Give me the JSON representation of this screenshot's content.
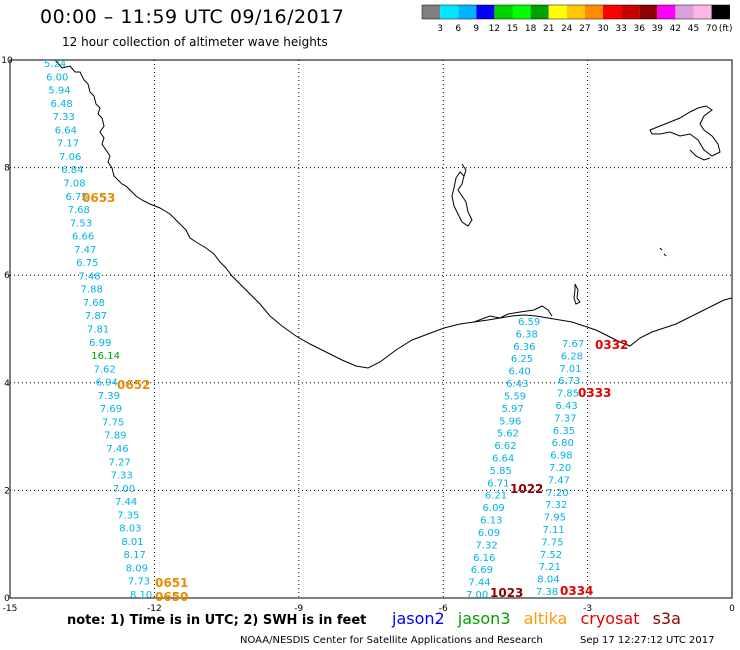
{
  "header": {
    "title": "00:00 – 11:59 UTC 09/16/2017",
    "subtitle": "12 hour collection of altimeter wave heights"
  },
  "colorbar": {
    "unit": "(ft)",
    "ticks": [
      "3",
      "6",
      "9",
      "12",
      "15",
      "18",
      "21",
      "24",
      "27",
      "30",
      "33",
      "36",
      "39",
      "42",
      "45",
      "70"
    ],
    "colors": [
      "#7f7f7f",
      "#00e6ff",
      "#00b4ff",
      "#0000ff",
      "#00d200",
      "#00ff00",
      "#00a000",
      "#ffff00",
      "#ffc800",
      "#ff8c00",
      "#ff0000",
      "#c80000",
      "#8b0000",
      "#ff00ff",
      "#dda0dd",
      "#ffb4e6",
      "#000000"
    ]
  },
  "axes": {
    "x_ticks": [
      "-15",
      "-12",
      "-9",
      "-6",
      "-3",
      "0"
    ],
    "y_ticks": [
      "0",
      "2",
      "4",
      "6",
      "8",
      "10"
    ],
    "xlim": [
      -15,
      0
    ],
    "ylim": [
      0,
      10
    ]
  },
  "tracks": [
    {
      "satellite": "altika",
      "color": "#00b4e6",
      "values": [
        "5.24",
        "6.00",
        "5.94",
        "6.48",
        "7.33",
        "6.64",
        "7.17",
        "7.06",
        "6.84",
        "7.08",
        "6.75",
        "7.68",
        "7.53",
        "6.66",
        "7.47",
        "6.75",
        "7.48",
        "7.88",
        "7.68",
        "7.87",
        "7.81",
        "6.99",
        "16.14",
        "7.62",
        "6.94",
        "7.39",
        "7.69",
        "7.75",
        "7.89",
        "7.46",
        "7.27",
        "7.33",
        "7.00",
        "7.44",
        "7.35",
        "8.03",
        "8.01",
        "8.17",
        "8.09",
        "7.73",
        "8.10"
      ],
      "highlight_colors": {
        "16.14": "#00a000"
      },
      "time_labels": [
        {
          "text": "0653",
          "color": "#e68c00"
        },
        {
          "text": "0652",
          "color": "#e68c00"
        },
        {
          "text": "0651",
          "color": "#e68c00"
        },
        {
          "text": "0650",
          "color": "#e68c00"
        }
      ]
    },
    {
      "satellite": "jason2",
      "color": "#00b4e6",
      "values": [
        "6.59",
        "6.38",
        "6.36",
        "6.25",
        "6.40",
        "6.43",
        "5.59",
        "5.97",
        "5.96",
        "5.62",
        "6.62",
        "6.64",
        "5.85",
        "6.71",
        "6.21",
        "6.09",
        "6.13",
        "6.09",
        "7.32",
        "6.16",
        "6.69",
        "7.44",
        "7.00"
      ],
      "time_labels": [
        {
          "text": "1022",
          "color": "#8b0000"
        },
        {
          "text": "1023",
          "color": "#8b0000"
        }
      ]
    },
    {
      "satellite": "cryosat",
      "color": "#00b4e6",
      "values": [
        "7.67",
        "6.28",
        "7.01",
        "6.73",
        "7.85",
        "6.43",
        "7.37",
        "6.35",
        "6.80",
        "6.98",
        "7.20",
        "7.47",
        "7.20",
        "7.32",
        "7.95",
        "7.11",
        "7.75",
        "7.52",
        "7.21",
        "8.04",
        "7.38"
      ],
      "time_labels": [
        {
          "text": "0332",
          "color": "#e60000"
        },
        {
          "text": "0333",
          "color": "#e60000"
        },
        {
          "text": "0334",
          "color": "#e60000"
        }
      ]
    }
  ],
  "footer": {
    "note": "note:  1) Time is in UTC;  2) SWH is in feet",
    "satellites": [
      {
        "name": "jason2",
        "color": "#0000ff"
      },
      {
        "name": "jason3",
        "color": "#00a000"
      },
      {
        "name": "altika",
        "color": "#ff9900"
      },
      {
        "name": "cryosat",
        "color": "#e60000"
      },
      {
        "name": "s3a",
        "color": "#8b0000"
      }
    ],
    "credit": "NOAA/NESDIS Center for Satellite Applications and Research",
    "timestamp": "Sep 17 12:27:12 UTC 2017"
  }
}
